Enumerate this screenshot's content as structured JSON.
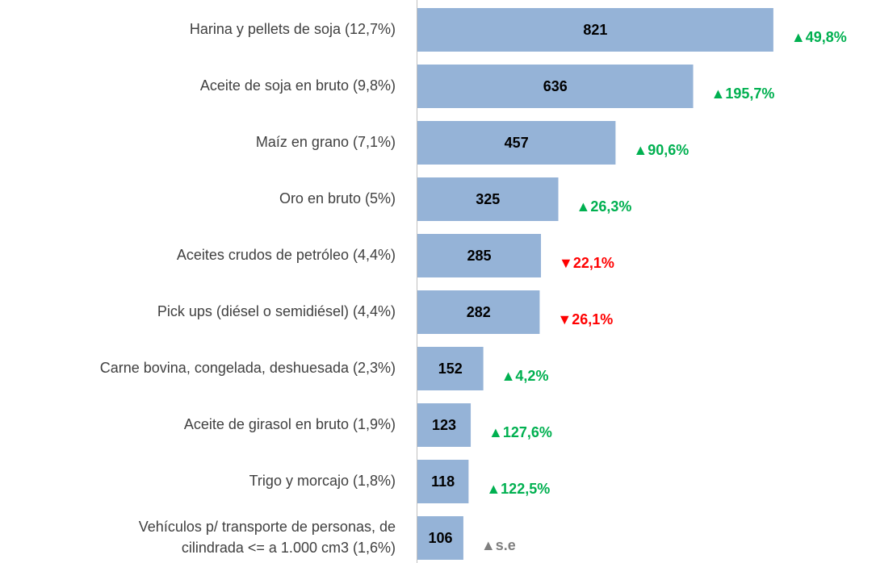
{
  "chart_data": {
    "type": "barh",
    "categories": [
      "Harina y pellets de soja  (12,7%)",
      "Aceite de soja en bruto  (9,8%)",
      "Maíz en grano  (7,1%)",
      "Oro en bruto  (5%)",
      "Aceites crudos de petróleo (4,4%)",
      "Pick ups (diésel o semidiésel)  (4,4%)",
      "Carne bovina, congelada, deshuesada (2,3%)",
      "Aceite de girasol en bruto  (1,9%)",
      "Trigo y morcajo  (1,8%)",
      "Vehículos p/ transporte de personas, de\ncilindrada  <= a 1.000 cm3  (1,6%)"
    ],
    "values": [
      821,
      636,
      457,
      325,
      285,
      282,
      152,
      123,
      118,
      106
    ],
    "color": "#95b3d7",
    "xlim": [
      0,
      1000
    ],
    "annotations": [
      "▲49,8%",
      "▲195,7%",
      "▲90,6%",
      "▲26,3%",
      "▼22,1%",
      "▼26,1%",
      "▲4,2%",
      "▲127,6%",
      "▲122,5%",
      "▲s.e"
    ],
    "annotation_colors": [
      "#00b050",
      "#00b050",
      "#00b050",
      "#00b050",
      "#ff0000",
      "#ff0000",
      "#00b050",
      "#00b050",
      "#00b050",
      "#7f7f7f"
    ]
  }
}
